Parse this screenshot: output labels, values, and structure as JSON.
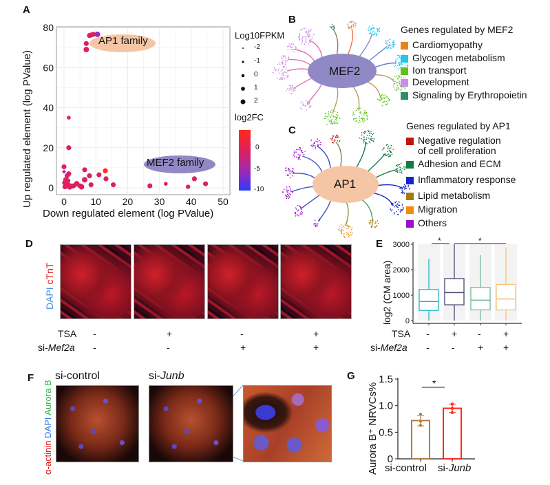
{
  "panels": {
    "A": "A",
    "B": "B",
    "C": "C",
    "D": "D",
    "E": "E",
    "F": "F",
    "G": "G"
  },
  "panelA": {
    "annotations": {
      "ap1": "AP1 family",
      "mef2": "MEF2 family"
    },
    "size_legend": {
      "title": "Log10FPKM",
      "values": [
        "-2",
        "-1",
        "0",
        "1",
        "2"
      ]
    },
    "color_legend": {
      "title": "log2FC",
      "ticks": [
        "0",
        "-5",
        "-10"
      ],
      "colors": [
        "#ff2a1a",
        "#dd2060",
        "#9a2ab8",
        "#2a3aff"
      ]
    }
  },
  "panelB": {
    "hub": "MEF2",
    "legend_title": "Genes regulated by MEF2",
    "items": [
      {
        "label": "Cardiomyopathy",
        "color": "#e8831a"
      },
      {
        "label": "Glycogen metabolism",
        "color": "#22c4f0"
      },
      {
        "label": "Ion transport",
        "color": "#5ec21a"
      },
      {
        "label": "Development",
        "color": "#c98de8"
      },
      {
        "label": "Signaling by Erythropoietin",
        "color": "#2e8c6a"
      }
    ]
  },
  "panelC": {
    "hub": "AP1",
    "legend_title": "Genes regulated by AP1",
    "items": [
      {
        "label": "Negative regulation",
        "label2": "of cell proliferation",
        "color": "#c0180c"
      },
      {
        "label": "Adhesion and ECM",
        "color": "#137a44"
      },
      {
        "label": "Inflammatory response",
        "color": "#1424c8"
      },
      {
        "label": "Lipid metabolism",
        "color": "#a37a12"
      },
      {
        "label": "Migration",
        "color": "#f58b0a"
      },
      {
        "label": "Others",
        "color": "#9b10c8"
      }
    ]
  },
  "panelD": {
    "stain_dapi": "DAPI",
    "stain_ctnt": "cTnT",
    "row1_label": "TSA",
    "row2_prefix": "si-",
    "row2_gene": "Mef2a",
    "tsa": [
      "-",
      "+",
      "-",
      "+"
    ],
    "si": [
      "-",
      "-",
      "+",
      "+"
    ]
  },
  "panelE": {
    "ylabel": "log2 (CM area)",
    "row1_label": "TSA",
    "row2_prefix": "si-",
    "row2_gene": "Mef2a",
    "tsa": [
      "-",
      "+",
      "-",
      "+"
    ],
    "si": [
      "-",
      "-",
      "+",
      "+"
    ],
    "sig": [
      "*",
      "*"
    ]
  },
  "panelF": {
    "stain_green": "Aurora B",
    "stain_blue": "DAPI",
    "stain_red": "α-actinin",
    "title1": "si-control",
    "title2_prefix": "si-",
    "title2_gene": "Junb"
  },
  "panelG": {
    "ylabel": "Aurora B⁺ NRVCs%",
    "sig": "*",
    "cat1": "si-control",
    "cat2_prefix": "si-",
    "cat2_gene": "Junb"
  },
  "chart_data": [
    {
      "panel": "A",
      "type": "scatter",
      "xlabel": "Down regulated element (log PValue)",
      "ylabel": "Up regulated element (log PValue)",
      "xlim": [
        0,
        50
      ],
      "ylim": [
        0,
        80
      ],
      "xticks": [
        "0",
        "10",
        "20",
        "30",
        "40",
        "50"
      ],
      "yticks": [
        "0",
        "20",
        "40",
        "60",
        "80"
      ],
      "grid": true,
      "points": [
        [
          7,
          69,
          1.5,
          -1
        ],
        [
          7,
          72,
          1,
          -1
        ],
        [
          8,
          76,
          1,
          -1
        ],
        [
          8.6,
          76.3,
          1,
          -1
        ],
        [
          9.2,
          76.6,
          1,
          -1
        ],
        [
          10.5,
          76.6,
          1.5,
          -6
        ],
        [
          1.5,
          35,
          0,
          -1
        ],
        [
          1.5,
          20,
          1,
          -1
        ],
        [
          0,
          10.5,
          1,
          -1
        ],
        [
          0,
          8,
          -0.5,
          -5
        ],
        [
          1,
          6,
          1,
          -1
        ],
        [
          1.5,
          7,
          1,
          -1
        ],
        [
          0.5,
          4,
          1,
          -1
        ],
        [
          1,
          2,
          1.5,
          -1
        ],
        [
          2,
          1,
          1,
          -1
        ],
        [
          3,
          1,
          1,
          -1
        ],
        [
          4,
          2,
          1.5,
          -1
        ],
        [
          5,
          1,
          1,
          -1
        ],
        [
          5.5,
          0.5,
          1.5,
          -1
        ],
        [
          6.5,
          4,
          1.5,
          -1
        ],
        [
          6.5,
          9,
          1,
          -1
        ],
        [
          8,
          6,
          1,
          -1
        ],
        [
          8.5,
          1.5,
          1,
          -1
        ],
        [
          11,
          6.5,
          1,
          -1
        ],
        [
          13,
          8.5,
          1,
          2
        ],
        [
          13.2,
          4.5,
          1,
          -1
        ],
        [
          15.5,
          1.5,
          1,
          -1
        ],
        [
          27,
          1,
          1,
          -1
        ],
        [
          32,
          2,
          0,
          -1
        ],
        [
          39,
          0.5,
          0.5,
          -1
        ],
        [
          41,
          4.5,
          1,
          -1
        ],
        [
          44.5,
          2,
          1,
          -1
        ],
        [
          0.3,
          0.5,
          1,
          -1
        ],
        [
          0.8,
          1,
          1,
          -1
        ],
        [
          1.8,
          0.3,
          1,
          -1
        ],
        [
          2.5,
          0.8,
          1,
          -1
        ],
        [
          0.2,
          2.5,
          1,
          -1
        ],
        [
          1.2,
          3.5,
          1,
          0
        ]
      ],
      "point_fields": [
        "x",
        "y",
        "log10FPKM",
        "log2FC"
      ]
    },
    {
      "panel": "E",
      "type": "box",
      "ylabel": "log2 (CM area)",
      "ylim": [
        0,
        3000
      ],
      "yticks": [
        "0",
        "1000",
        "2000",
        "3000"
      ],
      "boxes": [
        {
          "min": 0,
          "q1": 400,
          "median": 750,
          "q3": 1220,
          "max": 2420,
          "color": "#22b8c8"
        },
        {
          "min": 0,
          "q1": 620,
          "median": 1100,
          "q3": 1650,
          "max": 3000,
          "color": "#4a4a72"
        },
        {
          "min": 0,
          "q1": 420,
          "median": 800,
          "q3": 1300,
          "max": 2570,
          "color": "#7ab89a"
        },
        {
          "min": 0,
          "q1": 420,
          "median": 850,
          "q3": 1420,
          "max": 2870,
          "color": "#f5c27a"
        }
      ]
    },
    {
      "panel": "G",
      "type": "bar",
      "ylabel": "Aurora B⁺ NRVCs%",
      "ylim": [
        0,
        1.5
      ],
      "yticks": [
        "0",
        "0.5",
        "1.0",
        "1.5"
      ],
      "categories": [
        "si-control",
        "si-Junb"
      ],
      "values": [
        0.72,
        0.95
      ],
      "points": [
        [
          0.84,
          0.63,
          0.71
        ],
        [
          1.03,
          0.87,
          0.95
        ]
      ],
      "sd": [
        0.1,
        0.08
      ],
      "colors": [
        "#b07d3e",
        "#ff2a1a"
      ]
    }
  ]
}
